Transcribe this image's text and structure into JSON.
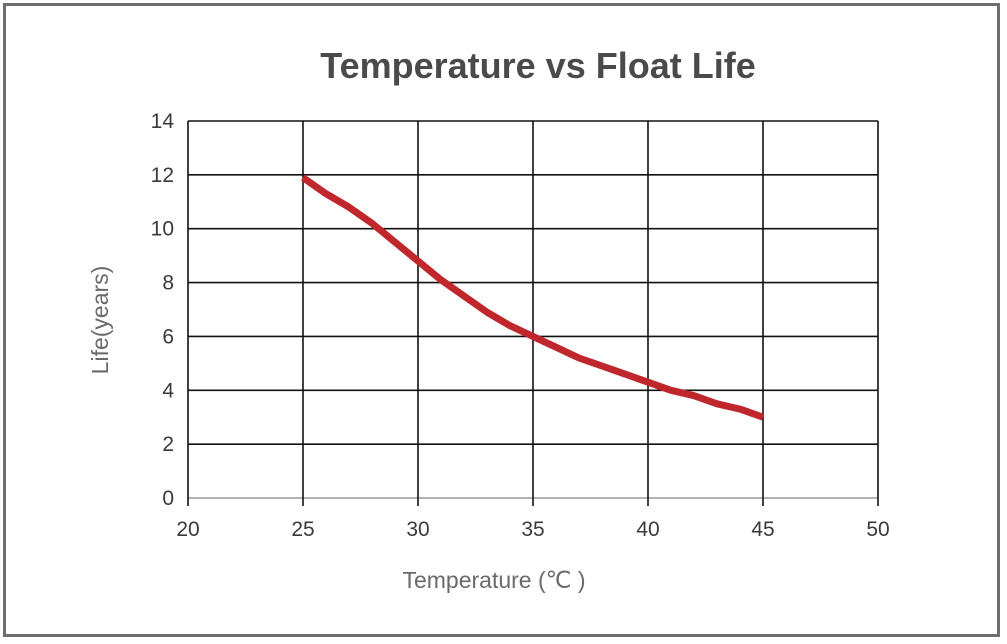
{
  "chart_data": {
    "type": "line",
    "title": "Temperature vs Float Life",
    "xlabel": "Temperature (℃ )",
    "ylabel": "Life(years)",
    "xlim": [
      20,
      50
    ],
    "ylim": [
      0,
      14
    ],
    "xticks": [
      20,
      25,
      30,
      35,
      40,
      45,
      50
    ],
    "yticks": [
      0,
      2,
      4,
      6,
      8,
      10,
      12,
      14
    ],
    "x_tick_labels": [
      "20",
      "25",
      "30",
      "35",
      "40",
      "45",
      "50"
    ],
    "y_tick_labels": [
      "0",
      "2",
      "4",
      "6",
      "8",
      "10",
      "12",
      "14"
    ],
    "grid": true,
    "legend": "none",
    "series": [
      {
        "color": "#c0272d",
        "x": [
          25,
          26,
          27,
          28,
          29,
          30,
          31,
          32,
          33,
          34,
          35,
          36,
          37,
          38,
          39,
          40,
          41,
          42,
          43,
          44,
          45
        ],
        "y": [
          11.9,
          11.3,
          10.8,
          10.2,
          9.5,
          8.8,
          8.1,
          7.5,
          6.9,
          6.4,
          6.0,
          5.6,
          5.2,
          4.9,
          4.6,
          4.3,
          4.0,
          3.8,
          3.5,
          3.3,
          3.0
        ]
      }
    ]
  }
}
